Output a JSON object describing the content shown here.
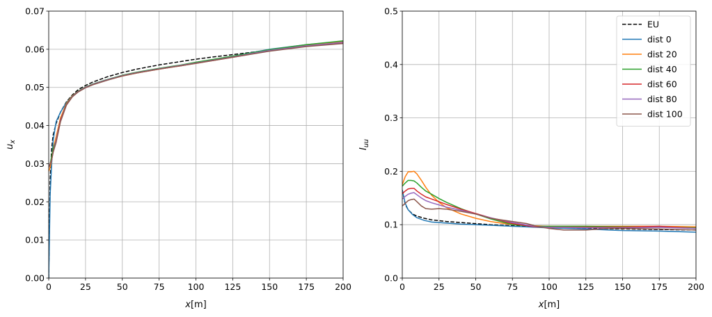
{
  "chart_data": [
    {
      "type": "line",
      "xlabel_var": "x",
      "xlabel_unit": "[m]",
      "ylabel_var": "u",
      "ylabel_sub": "x",
      "xlim": [
        0,
        200
      ],
      "ylim": [
        0,
        0.07
      ],
      "xticks": [
        0,
        25,
        50,
        75,
        100,
        125,
        150,
        175,
        200
      ],
      "xtick_labels": [
        "0",
        "25",
        "50",
        "75",
        "100",
        "125",
        "150",
        "175",
        "200"
      ],
      "yticks": [
        0,
        0.01,
        0.02,
        0.03,
        0.04,
        0.05,
        0.06,
        0.07
      ],
      "ytick_labels": [
        "0.00",
        "0.01",
        "0.02",
        "0.03",
        "0.04",
        "0.05",
        "0.06",
        "0.07"
      ],
      "grid": true,
      "legend": false,
      "series": [
        {
          "name": "EU",
          "color": "#000000",
          "dash": true,
          "x": [
            0,
            0.5,
            1,
            2,
            3,
            5,
            8,
            12,
            16,
            20,
            25,
            30,
            40,
            50,
            60,
            75,
            90,
            100,
            110,
            125,
            140,
            150,
            160,
            175,
            190,
            200
          ],
          "y": [
            0,
            0.015,
            0.026,
            0.034,
            0.0375,
            0.0405,
            0.0435,
            0.0462,
            0.048,
            0.0494,
            0.0505,
            0.0514,
            0.0528,
            0.0539,
            0.0548,
            0.0559,
            0.0568,
            0.0574,
            0.0579,
            0.0586,
            0.0593,
            0.0598,
            0.0603,
            0.0609,
            0.0615,
            0.0619
          ]
        },
        {
          "name": "dist 0",
          "color": "#1f77b4",
          "dash": false,
          "x": [
            0,
            1,
            2,
            3,
            5,
            8,
            12,
            16,
            20,
            25,
            30,
            40,
            50,
            60,
            75,
            90,
            100,
            125,
            150,
            175,
            200
          ],
          "y": [
            0,
            0.022,
            0.03,
            0.036,
            0.041,
            0.0435,
            0.046,
            0.0478,
            0.049,
            0.05,
            0.0509,
            0.0521,
            0.0531,
            0.0539,
            0.0549,
            0.0558,
            0.0565,
            0.0582,
            0.06,
            0.0612,
            0.0621
          ]
        },
        {
          "name": "dist 20",
          "color": "#ff7f0e",
          "dash": false,
          "x": [
            0,
            1,
            2,
            3,
            5,
            8,
            12,
            16,
            20,
            25,
            30,
            40,
            50,
            60,
            75,
            90,
            100,
            125,
            150,
            175,
            200
          ],
          "y": [
            0.028,
            0.029,
            0.031,
            0.034,
            0.037,
            0.042,
            0.0458,
            0.0478,
            0.049,
            0.05,
            0.0508,
            0.052,
            0.053,
            0.0538,
            0.0548,
            0.0557,
            0.0564,
            0.058,
            0.0597,
            0.061,
            0.0619
          ]
        },
        {
          "name": "dist 40",
          "color": "#2ca02c",
          "dash": false,
          "x": [
            0,
            1,
            2,
            3,
            5,
            8,
            12,
            16,
            20,
            25,
            30,
            40,
            50,
            60,
            75,
            90,
            100,
            125,
            150,
            175,
            200
          ],
          "y": [
            0.029,
            0.03,
            0.032,
            0.034,
            0.036,
            0.0415,
            0.0456,
            0.0477,
            0.049,
            0.0501,
            0.0509,
            0.0521,
            0.0532,
            0.054,
            0.055,
            0.0559,
            0.0566,
            0.0582,
            0.0599,
            0.0612,
            0.0622
          ]
        },
        {
          "name": "dist 60",
          "color": "#d62728",
          "dash": false,
          "x": [
            0,
            1,
            2,
            3,
            5,
            8,
            12,
            16,
            20,
            25,
            30,
            40,
            50,
            60,
            75,
            90,
            100,
            125,
            150,
            175,
            200
          ],
          "y": [
            0.029,
            0.03,
            0.031,
            0.033,
            0.036,
            0.0415,
            0.0455,
            0.0476,
            0.0489,
            0.05,
            0.0508,
            0.052,
            0.053,
            0.0538,
            0.0548,
            0.0557,
            0.0563,
            0.0579,
            0.0596,
            0.0608,
            0.0616
          ]
        },
        {
          "name": "dist 80",
          "color": "#9467bd",
          "dash": false,
          "x": [
            0,
            1,
            2,
            3,
            5,
            8,
            12,
            16,
            20,
            25,
            30,
            40,
            50,
            60,
            75,
            90,
            100,
            125,
            150,
            175,
            200
          ],
          "y": [
            0.029,
            0.03,
            0.031,
            0.033,
            0.036,
            0.0412,
            0.0454,
            0.0476,
            0.0489,
            0.05,
            0.0508,
            0.052,
            0.0531,
            0.0539,
            0.0549,
            0.0558,
            0.0564,
            0.058,
            0.0597,
            0.0609,
            0.0618
          ]
        },
        {
          "name": "dist 100",
          "color": "#8c564b",
          "dash": false,
          "x": [
            0,
            1,
            2,
            3,
            5,
            8,
            12,
            16,
            20,
            25,
            30,
            40,
            50,
            60,
            75,
            90,
            100,
            125,
            150,
            175,
            200
          ],
          "y": [
            0.029,
            0.03,
            0.031,
            0.033,
            0.0355,
            0.041,
            0.0453,
            0.0475,
            0.0488,
            0.0499,
            0.0507,
            0.0519,
            0.053,
            0.0538,
            0.0548,
            0.0557,
            0.0563,
            0.0579,
            0.0595,
            0.0607,
            0.0615
          ]
        }
      ]
    },
    {
      "type": "line",
      "xlabel_var": "x",
      "xlabel_unit": "[m]",
      "ylabel_var": "I",
      "ylabel_sub": "uu",
      "xlim": [
        0,
        200
      ],
      "ylim": [
        0,
        0.5
      ],
      "xticks": [
        0,
        25,
        50,
        75,
        100,
        125,
        150,
        175,
        200
      ],
      "xtick_labels": [
        "0",
        "25",
        "50",
        "75",
        "100",
        "125",
        "150",
        "175",
        "200"
      ],
      "yticks": [
        0,
        0.1,
        0.2,
        0.3,
        0.4,
        0.5
      ],
      "ytick_labels": [
        "0.0",
        "0.1",
        "0.2",
        "0.3",
        "0.4",
        "0.5"
      ],
      "grid": true,
      "legend": true,
      "legend_position": "top-right",
      "series": [
        {
          "name": "EU",
          "color": "#000000",
          "dash": true,
          "x": [
            0,
            2,
            4,
            7,
            10,
            15,
            20,
            30,
            40,
            50,
            60,
            75,
            100,
            125,
            150,
            175,
            200
          ],
          "y": [
            0.165,
            0.138,
            0.128,
            0.12,
            0.116,
            0.112,
            0.109,
            0.106,
            0.104,
            0.102,
            0.1,
            0.098,
            0.095,
            0.093,
            0.092,
            0.091,
            0.09
          ]
        },
        {
          "name": "dist 0",
          "color": "#1f77b4",
          "dash": false,
          "x": [
            0,
            2,
            4,
            7,
            10,
            15,
            20,
            30,
            40,
            50,
            60,
            75,
            100,
            125,
            150,
            175,
            200
          ],
          "y": [
            0.165,
            0.14,
            0.128,
            0.119,
            0.113,
            0.108,
            0.105,
            0.103,
            0.101,
            0.1,
            0.099,
            0.097,
            0.094,
            0.092,
            0.089,
            0.088,
            0.086
          ]
        },
        {
          "name": "dist 20",
          "color": "#ff7f0e",
          "dash": false,
          "x": [
            0,
            2,
            4,
            6,
            8,
            10,
            13,
            16,
            20,
            25,
            30,
            40,
            50,
            60,
            75,
            90,
            100,
            125,
            150,
            175,
            200
          ],
          "y": [
            0.175,
            0.19,
            0.199,
            0.199,
            0.2,
            0.195,
            0.183,
            0.17,
            0.155,
            0.142,
            0.132,
            0.12,
            0.112,
            0.106,
            0.1,
            0.098,
            0.097,
            0.097,
            0.097,
            0.097,
            0.096
          ]
        },
        {
          "name": "dist 40",
          "color": "#2ca02c",
          "dash": false,
          "x": [
            0,
            2,
            4,
            6,
            8,
            10,
            13,
            16,
            20,
            25,
            30,
            40,
            50,
            60,
            75,
            90,
            100,
            125,
            150,
            175,
            200
          ],
          "y": [
            0.172,
            0.178,
            0.183,
            0.183,
            0.182,
            0.178,
            0.17,
            0.163,
            0.157,
            0.149,
            0.142,
            0.13,
            0.12,
            0.111,
            0.1,
            0.097,
            0.097,
            0.097,
            0.096,
            0.096,
            0.094
          ]
        },
        {
          "name": "dist 60",
          "color": "#d62728",
          "dash": false,
          "x": [
            0,
            2,
            4,
            6,
            8,
            10,
            13,
            16,
            20,
            25,
            30,
            40,
            50,
            60,
            75,
            90,
            100,
            125,
            150,
            175,
            200
          ],
          "y": [
            0.158,
            0.163,
            0.167,
            0.168,
            0.168,
            0.163,
            0.157,
            0.152,
            0.148,
            0.143,
            0.138,
            0.129,
            0.121,
            0.113,
            0.102,
            0.096,
            0.095,
            0.095,
            0.095,
            0.097,
            0.093
          ]
        },
        {
          "name": "dist 80",
          "color": "#9467bd",
          "dash": false,
          "x": [
            0,
            2,
            4,
            6,
            8,
            10,
            13,
            16,
            20,
            25,
            30,
            40,
            50,
            60,
            75,
            90,
            100,
            125,
            150,
            175,
            200
          ],
          "y": [
            0.148,
            0.153,
            0.157,
            0.159,
            0.16,
            0.156,
            0.15,
            0.145,
            0.141,
            0.137,
            0.133,
            0.127,
            0.12,
            0.113,
            0.104,
            0.097,
            0.095,
            0.094,
            0.094,
            0.095,
            0.093
          ]
        },
        {
          "name": "dist 100",
          "color": "#8c564b",
          "dash": false,
          "x": [
            0,
            2,
            4,
            6,
            8,
            10,
            13,
            16,
            20,
            25,
            30,
            40,
            50,
            60,
            75,
            85,
            90,
            100,
            110,
            125,
            140,
            150,
            175,
            200
          ],
          "y": [
            0.135,
            0.14,
            0.145,
            0.147,
            0.148,
            0.143,
            0.135,
            0.13,
            0.129,
            0.13,
            0.129,
            0.125,
            0.12,
            0.112,
            0.106,
            0.102,
            0.098,
            0.093,
            0.09,
            0.09,
            0.093,
            0.093,
            0.092,
            0.09
          ]
        }
      ]
    }
  ]
}
